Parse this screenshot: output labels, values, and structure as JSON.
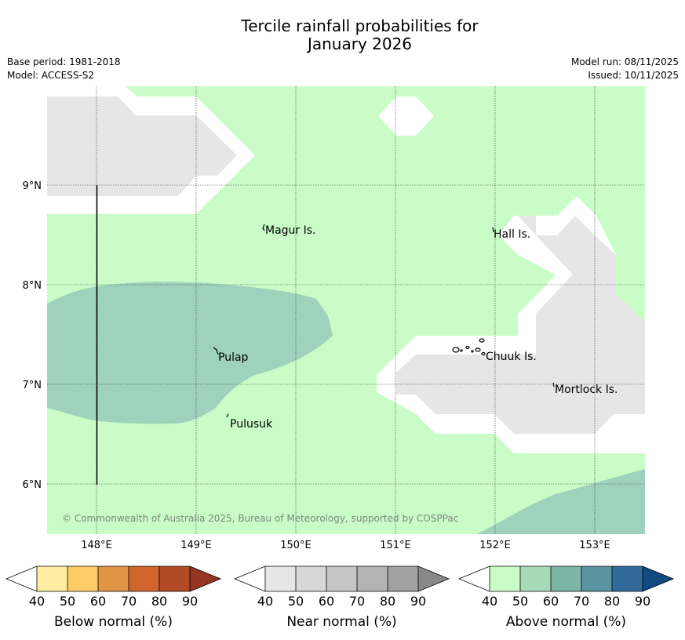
{
  "title_line1": "Tercile rainfall probabilities for",
  "title_line2": "January 2026",
  "meta": {
    "base_period": "Base period: 1981-2018",
    "model": "Model: ACCESS-S2",
    "model_run": "Model run: 08/11/2025",
    "issued": "Issued: 10/11/2025"
  },
  "map": {
    "lon_ticks": [
      "148°E",
      "149°E",
      "150°E",
      "151°E",
      "152°E",
      "153°E"
    ],
    "lat_ticks": [
      "9°N",
      "8°N",
      "7°N",
      "6°N"
    ],
    "places": [
      "Magur Is.",
      "Hall Is.",
      "Pulap",
      "Chuuk Is.",
      "Mortlock Is.",
      "Pulusuk"
    ],
    "copyright": "© Commonwealth of Australia 2025, Bureau of Meteorology, supported by COSPPac",
    "colors": {
      "green": "#c9fcc7",
      "teal": "#9ed2bc",
      "grey": "#e6e6e6"
    }
  },
  "colorbars": [
    {
      "title": "Below normal (%)",
      "ticks": [
        "40",
        "50",
        "60",
        "70",
        "80",
        "90"
      ],
      "colors": [
        "#ffffff",
        "#ffeea1",
        "#fecc66",
        "#e39547",
        "#cf642f",
        "#b24a27",
        "#963422"
      ]
    },
    {
      "title": "Near normal (%)",
      "ticks": [
        "40",
        "50",
        "60",
        "70",
        "80",
        "90"
      ],
      "colors": [
        "#ffffff",
        "#e6e6e6",
        "#d7d7d7",
        "#c6c6c6",
        "#b4b4b4",
        "#a1a1a1",
        "#888888"
      ]
    },
    {
      "title": "Above normal (%)",
      "ticks": [
        "40",
        "50",
        "60",
        "70",
        "80",
        "90"
      ],
      "colors": [
        "#ffffff",
        "#c9fcc7",
        "#a7dab8",
        "#7db5a6",
        "#5b95a1",
        "#326a9b",
        "#104a80"
      ]
    }
  ]
}
